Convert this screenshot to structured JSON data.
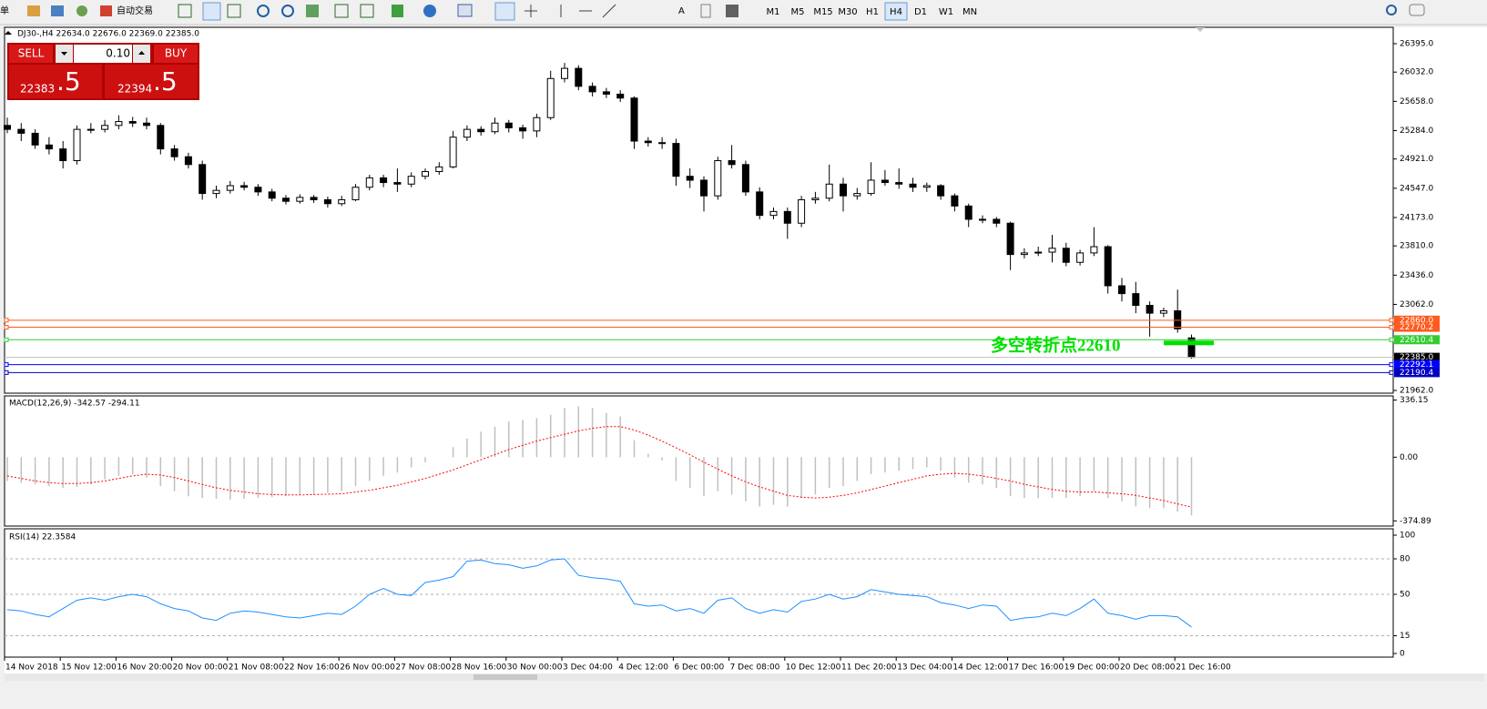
{
  "toolbar": {
    "cut_label": "订单",
    "auto_trade": "自动交易",
    "periods": [
      "M1",
      "M5",
      "M15",
      "M30",
      "H1",
      "H4",
      "D1",
      "W1",
      "MN"
    ],
    "active_period_index": 5
  },
  "trade": {
    "sell": "SELL",
    "buy": "BUY",
    "lot": "0.10",
    "bid": "22383",
    "bid_frac": ".5",
    "ask": "22394",
    "ask_frac": ".5"
  },
  "chart_data": [
    {
      "type": "candlestick",
      "info": "DJ30-,H4  22634.0 22676.0 22369.0 22385.0",
      "ylim": [
        21927,
        26593
      ],
      "yticks": [
        {
          "value": 26395,
          "label": "26395.0"
        },
        {
          "value": 26032,
          "label": "26032.0"
        },
        {
          "value": 25658,
          "label": "25658.0"
        },
        {
          "value": 25284,
          "label": "25284.0"
        },
        {
          "value": 24921,
          "label": "24921.0"
        },
        {
          "value": 24547,
          "label": "24547.0"
        },
        {
          "value": 24173,
          "label": "24173.0"
        },
        {
          "value": 23810,
          "label": "23810.0"
        },
        {
          "value": 23436,
          "label": "23436.0"
        },
        {
          "value": 23062,
          "label": "23062.0"
        },
        {
          "value": 21962,
          "label": "21962.0"
        }
      ],
      "bull_color": "#ffffff",
      "bear_color": "#000000",
      "ohlc": [
        [
          25350,
          25450,
          25250,
          25300
        ],
        [
          25300,
          25380,
          25150,
          25250
        ],
        [
          25250,
          25300,
          25050,
          25100
        ],
        [
          25100,
          25200,
          24980,
          25050
        ],
        [
          25050,
          25150,
          24800,
          24900
        ],
        [
          24900,
          25350,
          24850,
          25300
        ],
        [
          25300,
          25380,
          25250,
          25300
        ],
        [
          25300,
          25420,
          25260,
          25350
        ],
        [
          25350,
          25480,
          25300,
          25400
        ],
        [
          25400,
          25460,
          25330,
          25380
        ],
        [
          25380,
          25450,
          25300,
          25350
        ],
        [
          25350,
          25380,
          24980,
          25050
        ],
        [
          25050,
          25100,
          24900,
          24950
        ],
        [
          24950,
          25000,
          24800,
          24850
        ],
        [
          24850,
          24900,
          24400,
          24480
        ],
        [
          24480,
          24580,
          24420,
          24520
        ],
        [
          24520,
          24640,
          24480,
          24580
        ],
        [
          24580,
          24630,
          24520,
          24560
        ],
        [
          24560,
          24600,
          24450,
          24500
        ],
        [
          24500,
          24540,
          24380,
          24420
        ],
        [
          24420,
          24460,
          24340,
          24380
        ],
        [
          24380,
          24470,
          24350,
          24430
        ],
        [
          24430,
          24460,
          24360,
          24400
        ],
        [
          24400,
          24440,
          24300,
          24350
        ],
        [
          24350,
          24450,
          24320,
          24400
        ],
        [
          24400,
          24600,
          24380,
          24560
        ],
        [
          24560,
          24720,
          24520,
          24680
        ],
        [
          24680,
          24720,
          24560,
          24620
        ],
        [
          24620,
          24800,
          24500,
          24600
        ],
        [
          24600,
          24750,
          24560,
          24700
        ],
        [
          24700,
          24800,
          24660,
          24760
        ],
        [
          24760,
          24880,
          24720,
          24820
        ],
        [
          24820,
          25280,
          24800,
          25200
        ],
        [
          25200,
          25350,
          25150,
          25300
        ],
        [
          25300,
          25340,
          25220,
          25270
        ],
        [
          25270,
          25450,
          25240,
          25380
        ],
        [
          25380,
          25420,
          25260,
          25320
        ],
        [
          25320,
          25360,
          25180,
          25280
        ],
        [
          25280,
          25500,
          25200,
          25450
        ],
        [
          25450,
          26050,
          25420,
          25950
        ],
        [
          25950,
          26150,
          25900,
          26080
        ],
        [
          26080,
          26120,
          25800,
          25850
        ],
        [
          25850,
          25900,
          25720,
          25780
        ],
        [
          25780,
          25830,
          25700,
          25750
        ],
        [
          25750,
          25800,
          25650,
          25700
        ],
        [
          25700,
          25720,
          25050,
          25150
        ],
        [
          25150,
          25200,
          25080,
          25130
        ],
        [
          25130,
          25200,
          25050,
          25120
        ],
        [
          25120,
          25180,
          24580,
          24700
        ],
        [
          24700,
          24800,
          24550,
          24650
        ],
        [
          24650,
          24700,
          24250,
          24450
        ],
        [
          24450,
          24950,
          24400,
          24900
        ],
        [
          24900,
          25100,
          24800,
          24850
        ],
        [
          24850,
          24900,
          24450,
          24500
        ],
        [
          24500,
          24560,
          24150,
          24200
        ],
        [
          24200,
          24300,
          24150,
          24250
        ],
        [
          24250,
          24300,
          23900,
          24100
        ],
        [
          24100,
          24450,
          24050,
          24400
        ],
        [
          24400,
          24500,
          24350,
          24420
        ],
        [
          24420,
          24850,
          24380,
          24600
        ],
        [
          24600,
          24680,
          24250,
          24450
        ],
        [
          24450,
          24550,
          24400,
          24480
        ],
        [
          24480,
          24880,
          24450,
          24650
        ],
        [
          24650,
          24780,
          24580,
          24620
        ],
        [
          24620,
          24800,
          24540,
          24600
        ],
        [
          24600,
          24680,
          24500,
          24560
        ],
        [
          24560,
          24620,
          24500,
          24580
        ],
        [
          24580,
          24600,
          24400,
          24450
        ],
        [
          24450,
          24480,
          24250,
          24320
        ],
        [
          24320,
          24350,
          24050,
          24150
        ],
        [
          24150,
          24200,
          24100,
          24150
        ],
        [
          24150,
          24180,
          24050,
          24100
        ],
        [
          24100,
          24120,
          23500,
          23700
        ],
        [
          23700,
          23780,
          23650,
          23720
        ],
        [
          23720,
          23800,
          23680,
          23730
        ],
        [
          23730,
          23950,
          23600,
          23780
        ],
        [
          23780,
          23850,
          23550,
          23600
        ],
        [
          23600,
          23760,
          23560,
          23720
        ],
        [
          23720,
          24050,
          23680,
          23800
        ],
        [
          23800,
          23820,
          23200,
          23300
        ],
        [
          23300,
          23400,
          23100,
          23200
        ],
        [
          23200,
          23350,
          22950,
          23050
        ],
        [
          23050,
          23100,
          22650,
          22950
        ],
        [
          22950,
          23020,
          22900,
          22980
        ],
        [
          22980,
          23250,
          22700,
          22750
        ],
        [
          22634,
          22676,
          22369,
          22385
        ]
      ],
      "levels": [
        {
          "value": 22860,
          "label": "22860.0",
          "color": "#ff5a1f"
        },
        {
          "value": 22770.2,
          "label": "22770.2",
          "color": "#ff5a1f"
        },
        {
          "value": 22610.4,
          "label": "22610.4",
          "color": "#32cd32"
        },
        {
          "value": 22292.1,
          "label": "22292.1",
          "color": "#0000ff"
        },
        {
          "value": 22190.4,
          "label": "22190.4",
          "color": "#0000c0"
        }
      ],
      "current": {
        "value": 22385,
        "label": "22385.0"
      },
      "annotation": {
        "text": "多空转折点22610",
        "value": 22610,
        "color": "#00e000"
      }
    },
    {
      "type": "macd",
      "title": "MACD(12,26,9) -342.57 -294.11",
      "ylim": [
        -400,
        350
      ],
      "yticks": [
        336.15,
        {
          "value": 0,
          "label": "0.00"
        },
        -374.89
      ],
      "histogram_color": "#c0c0c0",
      "signal_color": "#ff0000",
      "histogram": [
        -140,
        -150,
        -160,
        -170,
        -180,
        -175,
        -160,
        -130,
        -110,
        -100,
        -120,
        -170,
        -200,
        -230,
        -240,
        -245,
        -250,
        -245,
        -240,
        -235,
        -230,
        -225,
        -220,
        -210,
        -200,
        -170,
        -140,
        -110,
        -90,
        -60,
        -30,
        0,
        60,
        110,
        150,
        180,
        210,
        220,
        230,
        250,
        290,
        300,
        290,
        260,
        240,
        100,
        20,
        -20,
        -140,
        -180,
        -230,
        -200,
        -220,
        -260,
        -290,
        -280,
        -290,
        -240,
        -220,
        -180,
        -170,
        -140,
        -100,
        -90,
        -80,
        -70,
        -60,
        -80,
        -120,
        -150,
        -160,
        -180,
        -230,
        -240,
        -240,
        -240,
        -240,
        -230,
        -200,
        -240,
        -260,
        -290,
        -300,
        -300,
        -320,
        -342.57
      ],
      "signal": [
        -110,
        -125,
        -140,
        -150,
        -155,
        -155,
        -150,
        -140,
        -125,
        -110,
        -100,
        -105,
        -120,
        -140,
        -160,
        -180,
        -195,
        -205,
        -215,
        -220,
        -222,
        -222,
        -220,
        -218,
        -215,
        -205,
        -195,
        -180,
        -165,
        -145,
        -125,
        -100,
        -75,
        -45,
        -15,
        15,
        45,
        70,
        95,
        115,
        135,
        155,
        170,
        180,
        180,
        160,
        130,
        95,
        55,
        15,
        -30,
        -70,
        -110,
        -145,
        -175,
        -200,
        -225,
        -235,
        -240,
        -235,
        -225,
        -210,
        -190,
        -170,
        -150,
        -130,
        -110,
        -100,
        -95,
        -100,
        -110,
        -125,
        -140,
        -160,
        -175,
        -190,
        -200,
        -205,
        -205,
        -210,
        -215,
        -225,
        -240,
        -255,
        -275,
        -294.11
      ]
    },
    {
      "type": "line",
      "title": "RSI(14) 22.3584",
      "ylim": [
        0,
        100
      ],
      "yticks": [
        100,
        80,
        50,
        15,
        0
      ],
      "color": "#1e90ff",
      "values": [
        37,
        36,
        33,
        31,
        38,
        45,
        47,
        45,
        48,
        50,
        48,
        42,
        38,
        36,
        30,
        28,
        34,
        36,
        35,
        33,
        31,
        30,
        32,
        34,
        33,
        40,
        50,
        55,
        50,
        49,
        60,
        62,
        65,
        78,
        79,
        76,
        75,
        72,
        74,
        79,
        80,
        66,
        64,
        63,
        61,
        42,
        40,
        41,
        36,
        38,
        34,
        45,
        47,
        38,
        34,
        37,
        35,
        44,
        46,
        50,
        46,
        48,
        54,
        52,
        50,
        49,
        48,
        43,
        41,
        38,
        41,
        40,
        28,
        30,
        31,
        34,
        32,
        38,
        46,
        34,
        32,
        29,
        32,
        32,
        31,
        22.3584
      ],
      "x_labels": [
        "14 Nov 2018",
        "15 Nov 12:00",
        "16 Nov 20:00",
        "20 Nov 00:00",
        "21 Nov 08:00",
        "22 Nov 16:00",
        "26 Nov 00:00",
        "27 Nov 08:00",
        "28 Nov 16:00",
        "30 Nov 00:00",
        "3 Dec 04:00",
        "4 Dec 12:00",
        "6 Dec 00:00",
        "7 Dec 08:00",
        "10 Dec 12:00",
        "11 Dec 20:00",
        "13 Dec 04:00",
        "14 Dec 12:00",
        "17 Dec 16:00",
        "19 Dec 00:00",
        "20 Dec 08:00",
        "21 Dec 16:00"
      ]
    }
  ]
}
